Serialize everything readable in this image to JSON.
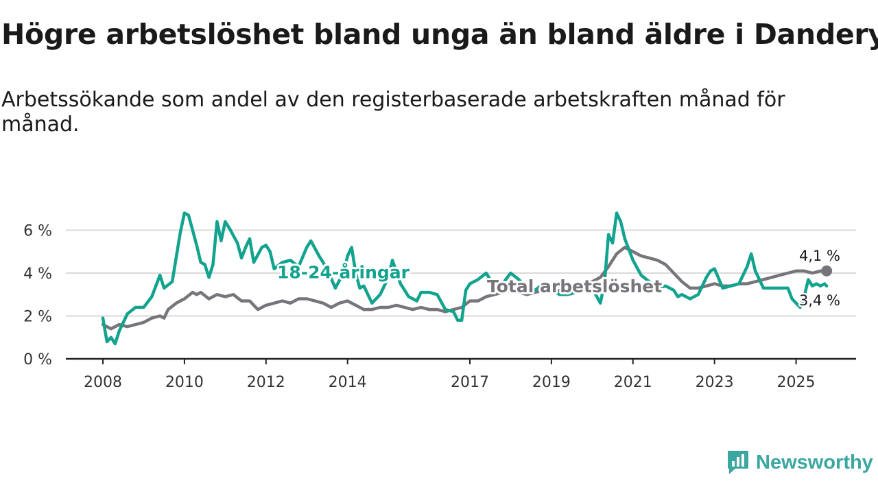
{
  "header": {
    "title": "Högre arbetslöshet bland unga än bland äldre i Danderyd",
    "subtitle": "Arbetssökande som andel av den registerbaserade arbetskraften månad för månad."
  },
  "brand": {
    "name": "Newsworthy",
    "icon": "newsworthy-logo-icon",
    "color": "#3aa7a0"
  },
  "colors": {
    "youth": "#12a38e",
    "total": "#77747a",
    "grid": "#d9d9d9",
    "axis": "#222222"
  },
  "chart_data": {
    "type": "line",
    "title": "Högre arbetslöshet bland unga än bland äldre i Danderyd",
    "xlabel": "",
    "ylabel": "",
    "ylim": [
      0,
      7.2
    ],
    "xlim": [
      2008.0,
      2026.0
    ],
    "y_ticks": [
      0,
      2,
      4,
      6
    ],
    "y_tick_labels": [
      "0 %",
      "2 %",
      "4 %",
      "6 %"
    ],
    "x_ticks": [
      2008,
      2010,
      2012,
      2014,
      2017,
      2019,
      2021,
      2023,
      2025
    ],
    "x_tick_labels": [
      "2008",
      "2010",
      "2012",
      "2014",
      "2017",
      "2019",
      "2021",
      "2023",
      "2025"
    ],
    "grid": true,
    "legend": "inline labels",
    "series": [
      {
        "name": "Total arbetslöshet",
        "label": "Total arbetslöshet",
        "end_label": "4,1 %",
        "color": "#77747a",
        "points": [
          [
            2008.0,
            1.6
          ],
          [
            2008.2,
            1.4
          ],
          [
            2008.4,
            1.6
          ],
          [
            2008.6,
            1.5
          ],
          [
            2008.8,
            1.6
          ],
          [
            2009.0,
            1.7
          ],
          [
            2009.2,
            1.9
          ],
          [
            2009.4,
            2.0
          ],
          [
            2009.5,
            1.9
          ],
          [
            2009.6,
            2.3
          ],
          [
            2009.8,
            2.6
          ],
          [
            2010.0,
            2.8
          ],
          [
            2010.2,
            3.1
          ],
          [
            2010.3,
            3.0
          ],
          [
            2010.4,
            3.1
          ],
          [
            2010.6,
            2.8
          ],
          [
            2010.8,
            3.0
          ],
          [
            2011.0,
            2.9
          ],
          [
            2011.2,
            3.0
          ],
          [
            2011.4,
            2.7
          ],
          [
            2011.6,
            2.7
          ],
          [
            2011.8,
            2.3
          ],
          [
            2012.0,
            2.5
          ],
          [
            2012.2,
            2.6
          ],
          [
            2012.4,
            2.7
          ],
          [
            2012.6,
            2.6
          ],
          [
            2012.8,
            2.8
          ],
          [
            2013.0,
            2.8
          ],
          [
            2013.2,
            2.7
          ],
          [
            2013.4,
            2.6
          ],
          [
            2013.6,
            2.4
          ],
          [
            2013.8,
            2.6
          ],
          [
            2014.0,
            2.7
          ],
          [
            2014.2,
            2.5
          ],
          [
            2014.4,
            2.3
          ],
          [
            2014.6,
            2.3
          ],
          [
            2014.8,
            2.4
          ],
          [
            2015.0,
            2.4
          ],
          [
            2015.2,
            2.5
          ],
          [
            2015.4,
            2.4
          ],
          [
            2015.6,
            2.3
          ],
          [
            2015.8,
            2.4
          ],
          [
            2016.0,
            2.3
          ],
          [
            2016.2,
            2.3
          ],
          [
            2016.4,
            2.2
          ],
          [
            2016.6,
            2.3
          ],
          [
            2016.8,
            2.4
          ],
          [
            2017.0,
            2.7
          ],
          [
            2017.2,
            2.7
          ],
          [
            2017.4,
            2.9
          ],
          [
            2017.6,
            3.0
          ],
          [
            2017.8,
            3.1
          ],
          [
            2018.0,
            3.2
          ],
          [
            2018.2,
            3.1
          ],
          [
            2018.4,
            3.0
          ],
          [
            2018.6,
            3.1
          ],
          [
            2018.8,
            3.2
          ],
          [
            2019.0,
            3.1
          ],
          [
            2019.2,
            3.2
          ],
          [
            2019.4,
            3.3
          ],
          [
            2019.6,
            3.4
          ],
          [
            2019.8,
            3.5
          ],
          [
            2020.0,
            3.6
          ],
          [
            2020.2,
            3.8
          ],
          [
            2020.4,
            4.3
          ],
          [
            2020.6,
            4.9
          ],
          [
            2020.8,
            5.2
          ],
          [
            2021.0,
            5.0
          ],
          [
            2021.2,
            4.8
          ],
          [
            2021.4,
            4.7
          ],
          [
            2021.6,
            4.6
          ],
          [
            2021.8,
            4.4
          ],
          [
            2022.0,
            4.0
          ],
          [
            2022.2,
            3.6
          ],
          [
            2022.4,
            3.3
          ],
          [
            2022.6,
            3.3
          ],
          [
            2022.8,
            3.4
          ],
          [
            2023.0,
            3.5
          ],
          [
            2023.2,
            3.4
          ],
          [
            2023.4,
            3.4
          ],
          [
            2023.6,
            3.5
          ],
          [
            2023.8,
            3.5
          ],
          [
            2024.0,
            3.6
          ],
          [
            2024.2,
            3.7
          ],
          [
            2024.4,
            3.8
          ],
          [
            2024.6,
            3.9
          ],
          [
            2024.8,
            4.0
          ],
          [
            2025.0,
            4.1
          ],
          [
            2025.2,
            4.1
          ],
          [
            2025.4,
            4.0
          ],
          [
            2025.6,
            4.1
          ],
          [
            2025.75,
            4.1
          ]
        ]
      },
      {
        "name": "18-24-åringar",
        "label": "18-24-åringar",
        "end_label": "3,4 %",
        "color": "#12a38e",
        "points": [
          [
            2008.0,
            1.9
          ],
          [
            2008.1,
            0.8
          ],
          [
            2008.2,
            1.0
          ],
          [
            2008.3,
            0.7
          ],
          [
            2008.4,
            1.3
          ],
          [
            2008.6,
            2.1
          ],
          [
            2008.8,
            2.4
          ],
          [
            2009.0,
            2.4
          ],
          [
            2009.2,
            2.9
          ],
          [
            2009.4,
            3.9
          ],
          [
            2009.5,
            3.3
          ],
          [
            2009.7,
            3.6
          ],
          [
            2009.9,
            5.9
          ],
          [
            2010.0,
            6.8
          ],
          [
            2010.1,
            6.7
          ],
          [
            2010.2,
            6.0
          ],
          [
            2010.3,
            5.3
          ],
          [
            2010.4,
            4.5
          ],
          [
            2010.5,
            4.4
          ],
          [
            2010.6,
            3.8
          ],
          [
            2010.7,
            4.4
          ],
          [
            2010.8,
            6.4
          ],
          [
            2010.9,
            5.5
          ],
          [
            2011.0,
            6.4
          ],
          [
            2011.1,
            6.1
          ],
          [
            2011.3,
            5.4
          ],
          [
            2011.4,
            4.7
          ],
          [
            2011.5,
            5.2
          ],
          [
            2011.6,
            5.6
          ],
          [
            2011.7,
            4.5
          ],
          [
            2011.9,
            5.2
          ],
          [
            2012.0,
            5.3
          ],
          [
            2012.1,
            5.0
          ],
          [
            2012.2,
            4.2
          ],
          [
            2012.4,
            4.5
          ],
          [
            2012.6,
            4.6
          ],
          [
            2012.8,
            4.3
          ],
          [
            2013.0,
            5.2
          ],
          [
            2013.1,
            5.5
          ],
          [
            2013.3,
            4.8
          ],
          [
            2013.5,
            4.2
          ],
          [
            2013.7,
            3.3
          ],
          [
            2013.9,
            4.0
          ],
          [
            2014.0,
            4.8
          ],
          [
            2014.1,
            5.2
          ],
          [
            2014.2,
            4.0
          ],
          [
            2014.3,
            3.3
          ],
          [
            2014.4,
            3.4
          ],
          [
            2014.6,
            2.6
          ],
          [
            2014.8,
            3.0
          ],
          [
            2015.0,
            3.8
          ],
          [
            2015.1,
            4.6
          ],
          [
            2015.3,
            3.5
          ],
          [
            2015.5,
            2.9
          ],
          [
            2015.7,
            2.7
          ],
          [
            2015.8,
            3.1
          ],
          [
            2016.0,
            3.1
          ],
          [
            2016.2,
            3.0
          ],
          [
            2016.4,
            2.3
          ],
          [
            2016.6,
            2.2
          ],
          [
            2016.7,
            1.8
          ],
          [
            2016.8,
            1.8
          ],
          [
            2016.9,
            3.2
          ],
          [
            2017.0,
            3.5
          ],
          [
            2017.2,
            3.7
          ],
          [
            2017.4,
            4.0
          ],
          [
            2017.5,
            3.7
          ],
          [
            2017.6,
            3.5
          ],
          [
            2017.8,
            3.5
          ],
          [
            2018.0,
            4.0
          ],
          [
            2018.2,
            3.7
          ],
          [
            2018.4,
            3.3
          ],
          [
            2018.6,
            3.2
          ],
          [
            2018.8,
            3.5
          ],
          [
            2019.0,
            3.2
          ],
          [
            2019.2,
            3.0
          ],
          [
            2019.4,
            3.0
          ],
          [
            2019.6,
            3.1
          ],
          [
            2019.8,
            3.5
          ],
          [
            2020.0,
            3.3
          ],
          [
            2020.2,
            2.6
          ],
          [
            2020.3,
            3.5
          ],
          [
            2020.4,
            5.8
          ],
          [
            2020.5,
            5.4
          ],
          [
            2020.6,
            6.8
          ],
          [
            2020.7,
            6.4
          ],
          [
            2020.8,
            5.6
          ],
          [
            2021.0,
            4.6
          ],
          [
            2021.2,
            3.9
          ],
          [
            2021.4,
            3.6
          ],
          [
            2021.6,
            3.3
          ],
          [
            2021.8,
            3.4
          ],
          [
            2022.0,
            3.2
          ],
          [
            2022.1,
            2.9
          ],
          [
            2022.2,
            3.0
          ],
          [
            2022.4,
            2.8
          ],
          [
            2022.6,
            3.0
          ],
          [
            2022.8,
            3.8
          ],
          [
            2022.9,
            4.1
          ],
          [
            2023.0,
            4.2
          ],
          [
            2023.2,
            3.3
          ],
          [
            2023.4,
            3.4
          ],
          [
            2023.6,
            3.5
          ],
          [
            2023.8,
            4.3
          ],
          [
            2023.9,
            4.9
          ],
          [
            2024.0,
            4.1
          ],
          [
            2024.2,
            3.3
          ],
          [
            2024.4,
            3.3
          ],
          [
            2024.6,
            3.3
          ],
          [
            2024.8,
            3.3
          ],
          [
            2024.9,
            2.8
          ],
          [
            2025.0,
            2.6
          ],
          [
            2025.1,
            2.4
          ],
          [
            2025.2,
            2.9
          ],
          [
            2025.3,
            3.7
          ],
          [
            2025.4,
            3.4
          ],
          [
            2025.5,
            3.5
          ],
          [
            2025.6,
            3.4
          ],
          [
            2025.7,
            3.5
          ],
          [
            2025.75,
            3.4
          ]
        ]
      }
    ]
  }
}
